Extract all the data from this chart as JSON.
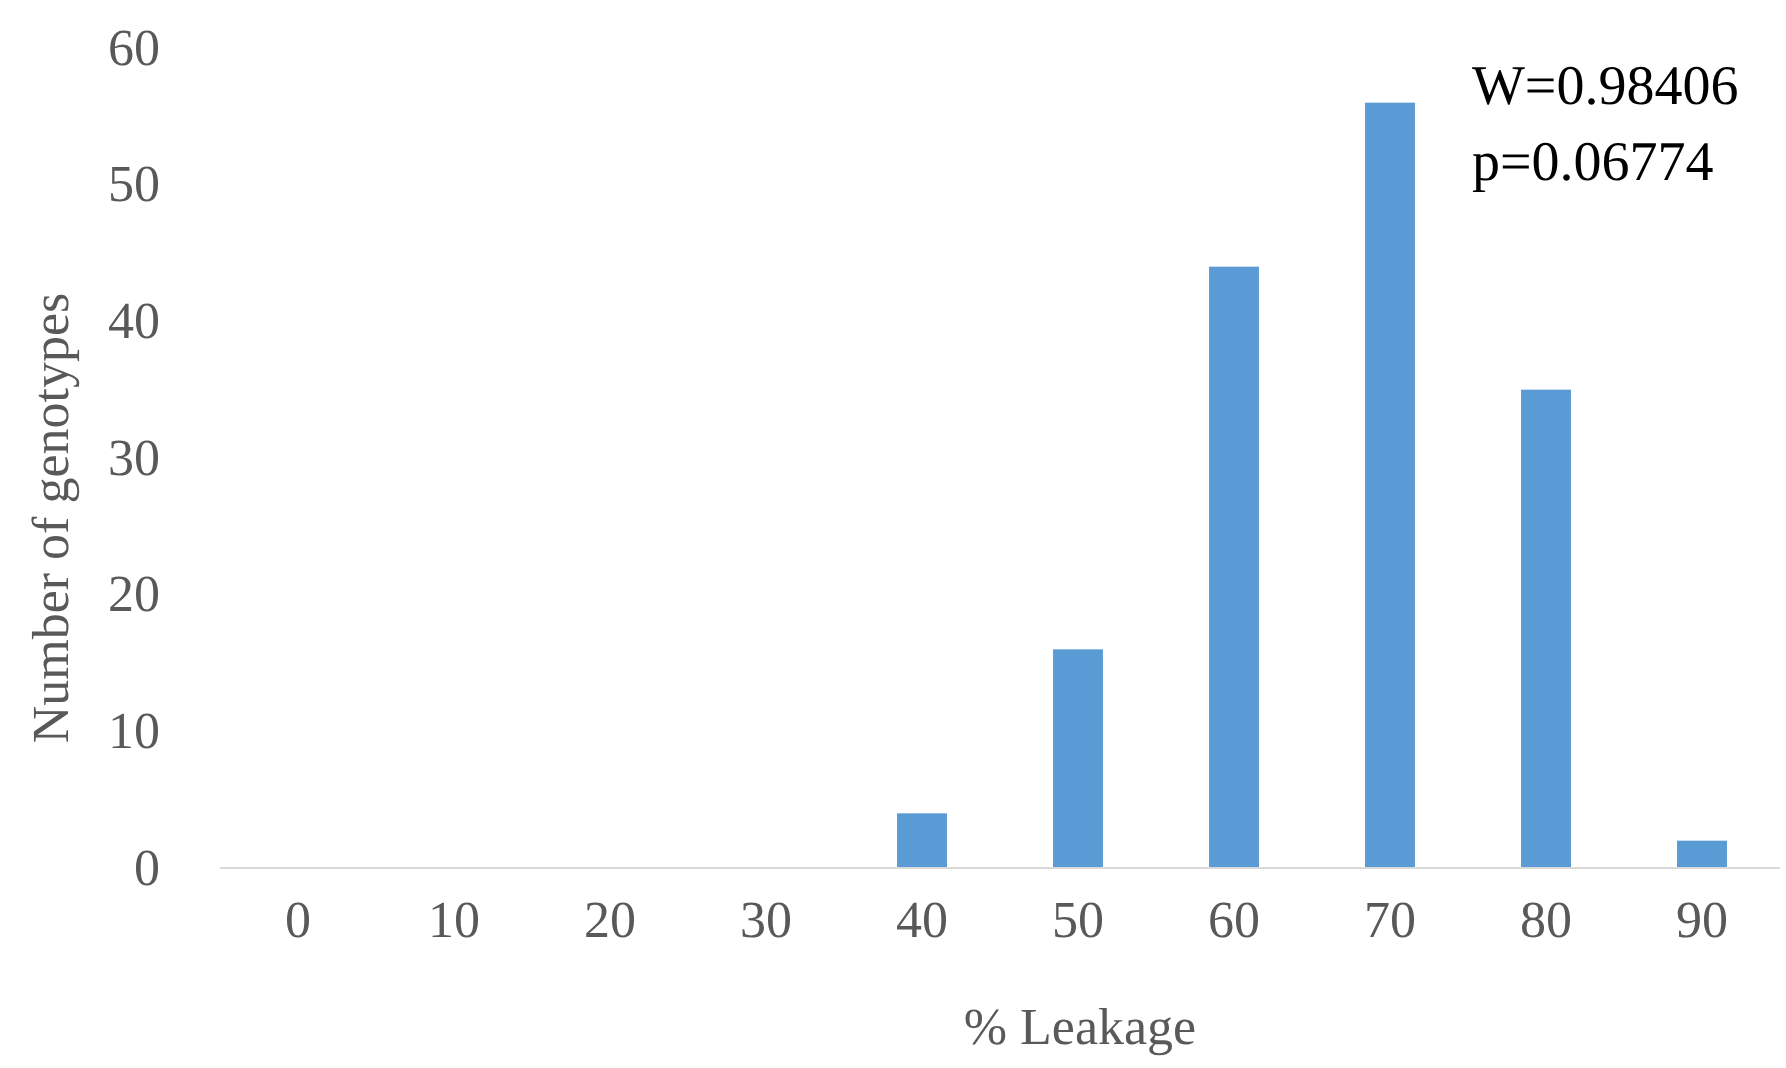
{
  "chart_data": {
    "type": "bar",
    "xlabel": "% Leakage",
    "ylabel": "Number of genotypes",
    "categories": [
      "0",
      "10",
      "20",
      "30",
      "40",
      "50",
      "60",
      "70",
      "80",
      "90"
    ],
    "values": [
      0,
      0,
      0,
      0,
      4,
      16,
      44,
      56,
      35,
      2
    ],
    "color": "#5b9bd5",
    "ylim": [
      0,
      60
    ],
    "yticks": [
      0,
      10,
      20,
      30,
      40,
      50,
      60
    ],
    "grid": false,
    "annotations": [
      "W=0.98406",
      "p=0.06774"
    ]
  }
}
